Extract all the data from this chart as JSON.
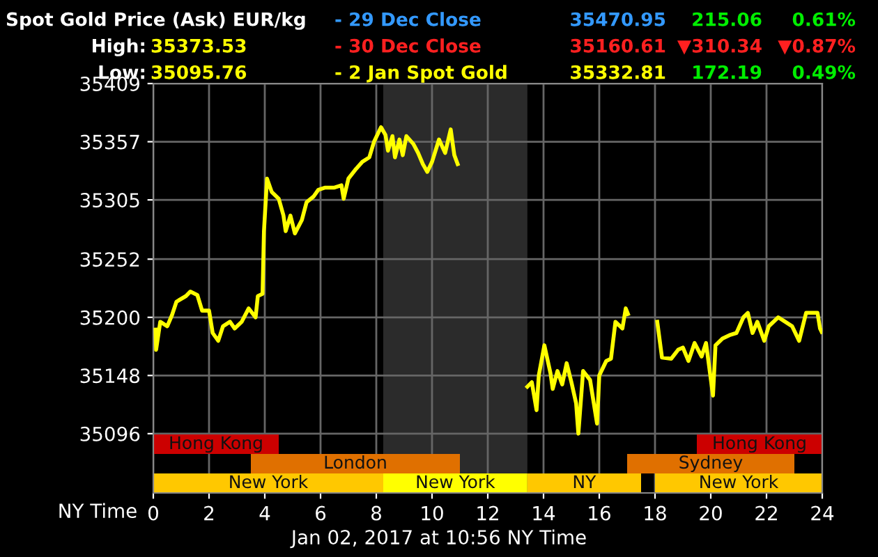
{
  "chart_data": {
    "type": "line",
    "title": "Spot Gold Price (Ask) EUR/kg",
    "xlabel": "NY Time",
    "annotations": [
      "High:",
      "35373.53",
      "Low:",
      "35095.76",
      "- 29 Dec Close",
      "35470.95",
      "215.06",
      "0.61%",
      "- 30 Dec Close",
      "35160.61",
      "▼310.34",
      "▼0.87%",
      "- 2 Jan Spot Gold",
      "35332.81",
      "172.19",
      "0.49%",
      "Jan 02, 2017 at 10:56 NY Time"
    ],
    "series": [
      {
        "color": "#ffff00",
        "x": [
          0.08,
          0.1,
          0.25,
          0.5,
          0.67,
          0.83,
          1.17,
          1.33,
          1.58,
          1.75,
          2.0,
          2.13,
          2.33,
          2.5,
          2.75,
          2.92,
          3.17,
          3.42,
          3.67,
          3.75,
          3.92,
          3.97,
          4.08,
          4.25,
          4.5,
          4.67,
          4.75,
          4.92,
          5.08,
          5.33,
          5.5,
          5.75,
          5.92,
          6.17,
          6.5,
          6.75,
          6.83,
          7.0,
          7.25,
          7.5,
          7.75,
          7.92,
          8.17,
          8.33,
          8.42,
          8.58,
          8.67,
          8.83,
          8.95,
          9.08,
          9.33,
          9.5,
          9.67,
          9.83,
          10.0,
          10.25,
          10.47,
          10.67,
          10.8,
          10.92,
          12.0,
          13.42,
          13.58,
          13.75,
          13.83,
          14.03,
          14.25,
          14.33,
          14.5,
          14.67,
          14.83,
          15.0,
          15.17,
          15.25,
          15.42,
          15.67,
          15.92,
          16.0,
          16.25,
          16.42,
          16.58,
          16.83,
          16.95,
          17.03,
          17.5,
          18.08,
          18.25,
          18.58,
          18.83,
          19.0,
          19.2,
          19.42,
          19.67,
          19.83,
          20.08,
          20.17,
          20.42,
          20.67,
          20.92,
          21.17,
          21.33,
          21.5,
          21.67,
          21.92,
          22.08,
          22.42,
          22.67,
          22.92,
          23.17,
          23.42,
          23.83,
          23.92,
          23.98
        ],
        "values": [
          35189,
          35171,
          35196,
          35192,
          35202,
          35214,
          35219,
          35223,
          35220,
          35206,
          35206,
          35186,
          35179,
          35192,
          35196,
          35190,
          35196,
          35208,
          35200,
          35219,
          35221,
          35277,
          35324,
          35312,
          35306,
          35291,
          35277,
          35291,
          35275,
          35287,
          35303,
          35308,
          35314,
          35316,
          35316,
          35318,
          35306,
          35324,
          35332,
          35339,
          35343,
          35357,
          35370,
          35363,
          35349,
          35362,
          35343,
          35359,
          35345,
          35362,
          35355,
          35347,
          35337,
          35330,
          35339,
          35359,
          35347,
          35368,
          35345,
          35337,
          null,
          35138,
          35142,
          35117,
          35148,
          35175,
          35150,
          35136,
          35152,
          35140,
          35159,
          35142,
          35123,
          35096,
          35152,
          35144,
          35105,
          35148,
          35161,
          35163,
          35196,
          35190,
          35208,
          35203,
          null,
          35196,
          35164,
          35163,
          35171,
          35173,
          35161,
          35177,
          35165,
          35177,
          35130,
          35175,
          35181,
          35184,
          35186,
          35200,
          35204,
          35186,
          35196,
          35179,
          35192,
          35200,
          35196,
          35192,
          35179,
          35204,
          35204,
          35190,
          35187
        ]
      }
    ],
    "xlim": [
      0,
      24
    ],
    "xticks": [
      0,
      2,
      4,
      6,
      8,
      10,
      12,
      14,
      16,
      18,
      20,
      22,
      24
    ],
    "ylim": [
      35043,
      35409
    ],
    "yticks": [
      35096,
      35148,
      35200,
      35252,
      35305,
      35357,
      35409
    ],
    "grid": true,
    "legend": false,
    "bands": [
      {
        "axis": "x",
        "from": 8.25,
        "to": 13.42,
        "color": "#2b2b2b"
      },
      {
        "axis": "x",
        "from": 0,
        "to": 4.5,
        "label": "Hong Kong",
        "color": "#cc0000"
      },
      {
        "axis": "x",
        "from": 19.5,
        "to": 24,
        "label": "Hong Kong",
        "color": "#cc0000"
      },
      {
        "axis": "x",
        "from": 3.5,
        "to": 11,
        "label": "London",
        "color": "#e07000"
      },
      {
        "axis": "x",
        "from": 17,
        "to": 23,
        "label": "Sydney",
        "color": "#e07000"
      },
      {
        "axis": "x",
        "from": 0,
        "to": 8.25,
        "label": "New York",
        "color": "#ffc800"
      },
      {
        "axis": "x",
        "from": 8.25,
        "to": 13.42,
        "label": "New York",
        "color": "#ffff00"
      },
      {
        "axis": "x",
        "from": 13.42,
        "to": 17.5,
        "label": "NY",
        "color": "#ffc800"
      },
      {
        "axis": "x",
        "from": 18,
        "to": 24,
        "label": "New York",
        "color": "#ffc800"
      }
    ]
  }
}
